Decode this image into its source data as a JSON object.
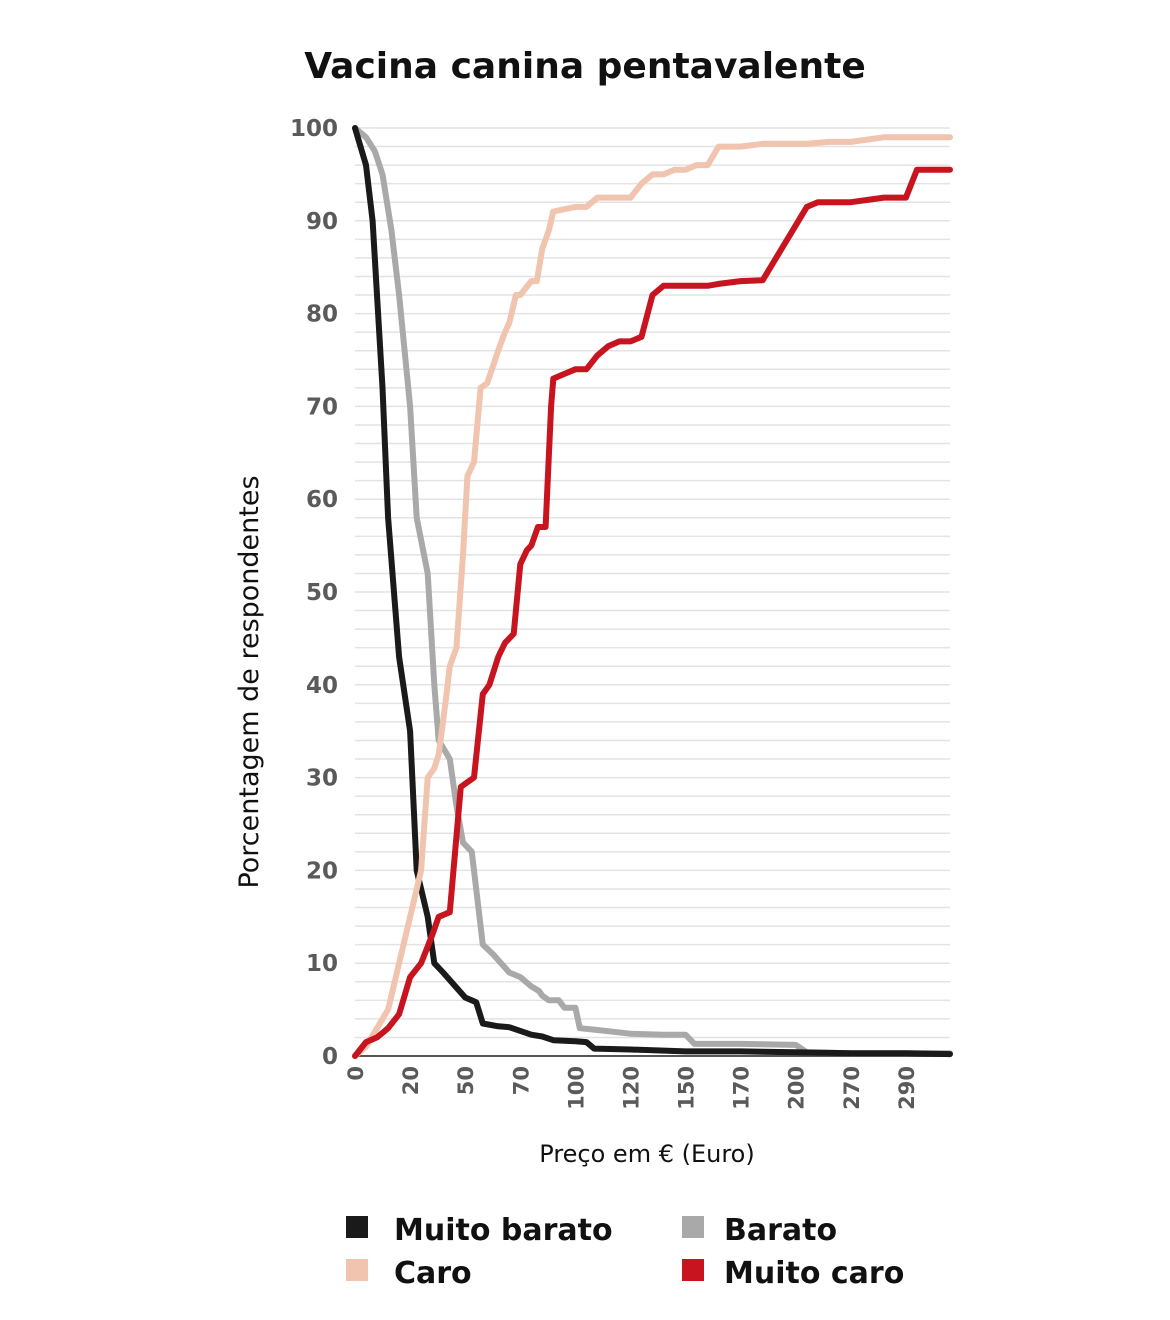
{
  "chart_data": {
    "type": "line",
    "title": "Vacina canina pentavalente",
    "xlabel": "Preço em € (Euro)",
    "ylabel": "Porcentagem de respondentes",
    "ylim": [
      0,
      100
    ],
    "yticks": [
      "0",
      "10",
      "20",
      "30",
      "40",
      "50",
      "60",
      "70",
      "80",
      "90",
      "100"
    ],
    "xlim": [
      0,
      54
    ],
    "xticks": [
      {
        "label": "0",
        "x": 0
      },
      {
        "label": "20",
        "x": 5
      },
      {
        "label": "50",
        "x": 10
      },
      {
        "label": "70",
        "x": 15
      },
      {
        "label": "100",
        "x": 20
      },
      {
        "label": "120",
        "x": 25
      },
      {
        "label": "150",
        "x": 30
      },
      {
        "label": "170",
        "x": 35
      },
      {
        "label": "200",
        "x": 40
      },
      {
        "label": "270",
        "x": 45
      },
      {
        "label": "290",
        "x": 50
      }
    ],
    "grid": true,
    "legend_position": "bottom",
    "series": [
      {
        "name": "Muito barato",
        "color": "#1a1a1a",
        "points": [
          [
            0,
            100
          ],
          [
            1,
            96
          ],
          [
            1.6,
            90
          ],
          [
            2.5,
            72
          ],
          [
            3,
            58
          ],
          [
            4,
            43
          ],
          [
            5,
            35
          ],
          [
            5.6,
            20
          ],
          [
            6.6,
            15
          ],
          [
            7.2,
            10
          ],
          [
            8,
            9
          ],
          [
            10,
            6.3
          ],
          [
            11,
            5.8
          ],
          [
            11.6,
            3.5
          ],
          [
            13,
            3.2
          ],
          [
            14,
            3.1
          ],
          [
            16,
            2.3
          ],
          [
            17,
            2.1
          ],
          [
            18,
            1.7
          ],
          [
            20,
            1.6
          ],
          [
            21,
            1.5
          ],
          [
            21.7,
            0.8
          ],
          [
            25,
            0.7
          ],
          [
            30,
            0.5
          ],
          [
            35,
            0.5
          ],
          [
            40,
            0.4
          ],
          [
            45,
            0.3
          ],
          [
            50,
            0.3
          ],
          [
            54,
            0.2
          ]
        ]
      },
      {
        "name": "Barato",
        "color": "#a9a9a9",
        "points": [
          [
            0,
            100
          ],
          [
            1,
            99
          ],
          [
            1.8,
            97.5
          ],
          [
            2.5,
            95
          ],
          [
            3.3,
            89
          ],
          [
            4,
            82
          ],
          [
            5,
            70
          ],
          [
            5.6,
            58
          ],
          [
            6.6,
            52
          ],
          [
            7.2,
            40
          ],
          [
            7.6,
            34
          ],
          [
            8.6,
            32
          ],
          [
            9.2,
            27
          ],
          [
            9.8,
            23
          ],
          [
            10.6,
            22
          ],
          [
            11,
            18
          ],
          [
            11.6,
            12
          ],
          [
            12.5,
            11
          ],
          [
            14,
            9
          ],
          [
            15,
            8.5
          ],
          [
            16,
            7.5
          ],
          [
            16.7,
            7
          ],
          [
            17,
            6.5
          ],
          [
            17.6,
            6
          ],
          [
            18.5,
            6
          ],
          [
            19,
            5.2
          ],
          [
            20,
            5.2
          ],
          [
            20.4,
            3
          ],
          [
            22,
            2.8
          ],
          [
            25,
            2.4
          ],
          [
            28,
            2.3
          ],
          [
            30,
            2.3
          ],
          [
            30.8,
            1.3
          ],
          [
            35,
            1.3
          ],
          [
            40,
            1.2
          ],
          [
            41,
            0.4
          ],
          [
            45,
            0.3
          ],
          [
            50,
            0.3
          ],
          [
            54,
            0.3
          ]
        ]
      },
      {
        "name": "Caro",
        "color": "#f0c4ae",
        "points": [
          [
            0,
            0
          ],
          [
            1,
            1
          ],
          [
            2,
            3
          ],
          [
            3,
            5
          ],
          [
            4,
            10
          ],
          [
            5,
            15
          ],
          [
            6,
            20
          ],
          [
            6.3,
            25
          ],
          [
            6.6,
            30
          ],
          [
            7.2,
            31
          ],
          [
            7.6,
            32.5
          ],
          [
            8.2,
            38
          ],
          [
            8.6,
            42
          ],
          [
            9.2,
            44
          ],
          [
            9.8,
            54
          ],
          [
            10.2,
            62.5
          ],
          [
            10.8,
            64
          ],
          [
            11.4,
            72
          ],
          [
            12,
            72.5
          ],
          [
            13,
            76
          ],
          [
            13.6,
            78
          ],
          [
            14,
            79
          ],
          [
            14.6,
            82
          ],
          [
            15,
            82
          ],
          [
            16,
            83.5
          ],
          [
            16.5,
            83.5
          ],
          [
            17,
            87
          ],
          [
            17.6,
            89
          ],
          [
            18,
            91
          ],
          [
            20,
            91.5
          ],
          [
            21,
            91.5
          ],
          [
            22,
            92.5
          ],
          [
            25,
            92.5
          ],
          [
            26,
            94
          ],
          [
            27,
            95
          ],
          [
            28,
            95
          ],
          [
            29,
            95.5
          ],
          [
            30,
            95.5
          ],
          [
            31,
            96
          ],
          [
            32,
            96
          ],
          [
            33,
            98
          ],
          [
            35,
            98
          ],
          [
            37,
            98.3
          ],
          [
            40,
            98.3
          ],
          [
            41,
            98.3
          ],
          [
            43,
            98.5
          ],
          [
            45,
            98.5
          ],
          [
            48,
            99
          ],
          [
            50,
            99
          ],
          [
            51,
            99
          ],
          [
            54,
            99
          ]
        ]
      },
      {
        "name": "Muito caro",
        "color": "#c8141e",
        "points": [
          [
            0,
            0
          ],
          [
            1,
            1.5
          ],
          [
            2,
            2
          ],
          [
            3,
            3
          ],
          [
            4,
            4.5
          ],
          [
            5,
            8.5
          ],
          [
            6,
            10
          ],
          [
            7,
            13
          ],
          [
            7.6,
            15
          ],
          [
            8.6,
            15.5
          ],
          [
            9.6,
            29
          ],
          [
            10.2,
            29.5
          ],
          [
            10.8,
            30
          ],
          [
            11.6,
            39
          ],
          [
            12.2,
            40
          ],
          [
            13,
            43
          ],
          [
            13.6,
            44.5
          ],
          [
            14.4,
            45.5
          ],
          [
            15,
            53
          ],
          [
            15.6,
            54.5
          ],
          [
            16,
            55
          ],
          [
            16.6,
            57
          ],
          [
            17.3,
            57
          ],
          [
            17.8,
            70
          ],
          [
            18,
            73
          ],
          [
            19,
            73.5
          ],
          [
            20,
            74
          ],
          [
            21,
            74
          ],
          [
            22,
            75.5
          ],
          [
            23,
            76.5
          ],
          [
            24,
            77
          ],
          [
            25,
            77
          ],
          [
            26,
            77.5
          ],
          [
            27,
            82
          ],
          [
            28,
            83
          ],
          [
            30,
            83
          ],
          [
            31,
            83
          ],
          [
            32,
            83
          ],
          [
            33,
            83.2
          ],
          [
            35,
            83.5
          ],
          [
            37,
            83.6
          ],
          [
            40,
            89.5
          ],
          [
            41,
            91.5
          ],
          [
            42,
            92
          ],
          [
            45,
            92
          ],
          [
            48,
            92.5
          ],
          [
            50,
            92.5
          ],
          [
            51,
            95.5
          ],
          [
            54,
            95.5
          ]
        ]
      }
    ]
  }
}
